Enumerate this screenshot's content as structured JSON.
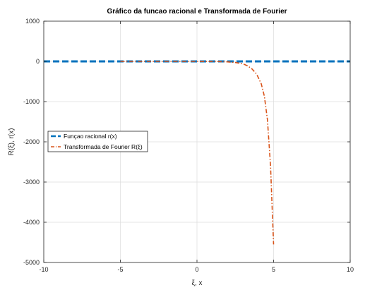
{
  "chart_data": {
    "type": "line",
    "title": "Gráfico da funcao racional e Transformada de Fourier",
    "xlabel": "ξ, x",
    "ylabel": "R(ξ), r(x)",
    "xlim": [
      -10,
      10
    ],
    "ylim": [
      -5000,
      1000
    ],
    "xticks": [
      -10,
      -5,
      0,
      5,
      10
    ],
    "yticks": [
      1000,
      0,
      -1000,
      -2000,
      -3000,
      -4000,
      -5000
    ],
    "grid": true,
    "legend_position": "left-center",
    "series": [
      {
        "name": "Funçao racional r(x)",
        "color": "#0072bd",
        "style": "dashed",
        "x": [
          -10,
          -8,
          -6,
          -4,
          -2,
          0,
          2,
          4,
          6,
          8,
          10
        ],
        "y": [
          0,
          0,
          0,
          0,
          0,
          0,
          0,
          0,
          0,
          0,
          0
        ]
      },
      {
        "name": "Transformada de Fourier R(ξ)",
        "color": "#d95319",
        "style": "dashdot",
        "x": [
          -5,
          -3,
          -1,
          0,
          1,
          1.5,
          2,
          2.5,
          3,
          3.3,
          3.6,
          3.9,
          4.2,
          4.4,
          4.6,
          4.8,
          5
        ],
        "y": [
          0,
          0,
          0,
          0,
          -2,
          -5,
          -12,
          -28,
          -60,
          -110,
          -190,
          -320,
          -560,
          -870,
          -1450,
          -2600,
          -4550
        ]
      }
    ]
  }
}
